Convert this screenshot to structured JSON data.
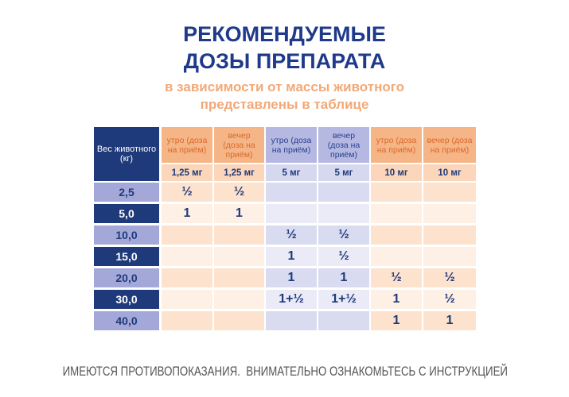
{
  "title": [
    "РЕКОМЕНДУЕМЫЕ",
    "ДОЗЫ ПРЕПАРАТА"
  ],
  "subtitle": [
    "в зависимости от массы животного",
    "представлены в таблице"
  ],
  "table": {
    "corner": "Вес животного (кг)",
    "columns": [
      "утро (доза на приём)",
      "вечер (доза на приём)",
      "утро (доза на приём)",
      "вечер (доза на приём)",
      "утро (доза на приём)",
      "вечер (доза на приём)"
    ],
    "doses": [
      "1,25 мг",
      "1,25 мг",
      "5 мг",
      "5 мг",
      "10 мг",
      "10 мг"
    ],
    "rows": [
      [
        "2,5",
        "½",
        "½",
        null,
        null,
        null,
        null
      ],
      [
        "5,0",
        "1",
        "1",
        null,
        null,
        null,
        null
      ],
      [
        "10,0",
        null,
        null,
        "½",
        "½",
        null,
        null
      ],
      [
        "15,0",
        null,
        null,
        "1",
        "½",
        null,
        null
      ],
      [
        "20,0",
        null,
        null,
        "1",
        "1",
        "½",
        "½"
      ],
      [
        "30,0",
        null,
        null,
        "1+½",
        "1+½",
        "1",
        "½"
      ],
      [
        "40,0",
        null,
        null,
        null,
        null,
        "1",
        "1"
      ]
    ]
  },
  "footer": "ИМЕЮТСЯ ПРОТИВОПОКАЗАНИЯ.  ВНИМАТЕЛЬНО ОЗНАКОМЬТЕСЬ С ИНСТРУКЦИЕЙ"
}
